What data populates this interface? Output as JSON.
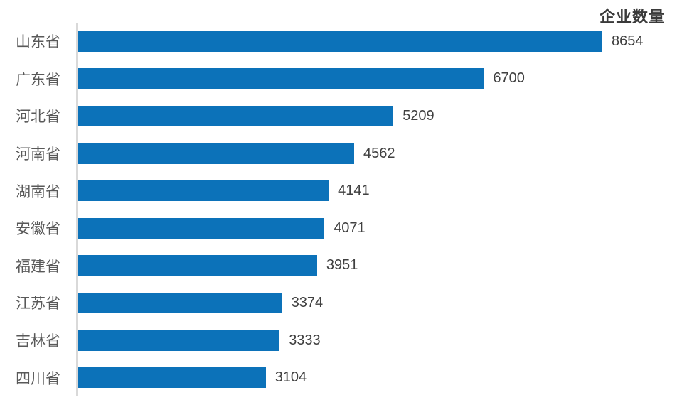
{
  "chart_data": {
    "type": "bar",
    "orientation": "horizontal",
    "title": "企业数量",
    "categories": [
      "山东省",
      "广东省",
      "河北省",
      "河南省",
      "湖南省",
      "安徽省",
      "福建省",
      "江苏省",
      "吉林省",
      "四川省"
    ],
    "values": [
      8654,
      6700,
      5209,
      4562,
      4141,
      4071,
      3951,
      3374,
      3333,
      3104
    ],
    "xlim": [
      0,
      8654
    ],
    "value_labels_shown": true,
    "grid": false,
    "legend_position": "none",
    "colors": {
      "bar": "#0c72b9",
      "axis_line": "#d9d9d9",
      "category_label": "#595959",
      "value_label": "#404040",
      "title": "#3a3a3a",
      "background": "#ffffff"
    }
  }
}
